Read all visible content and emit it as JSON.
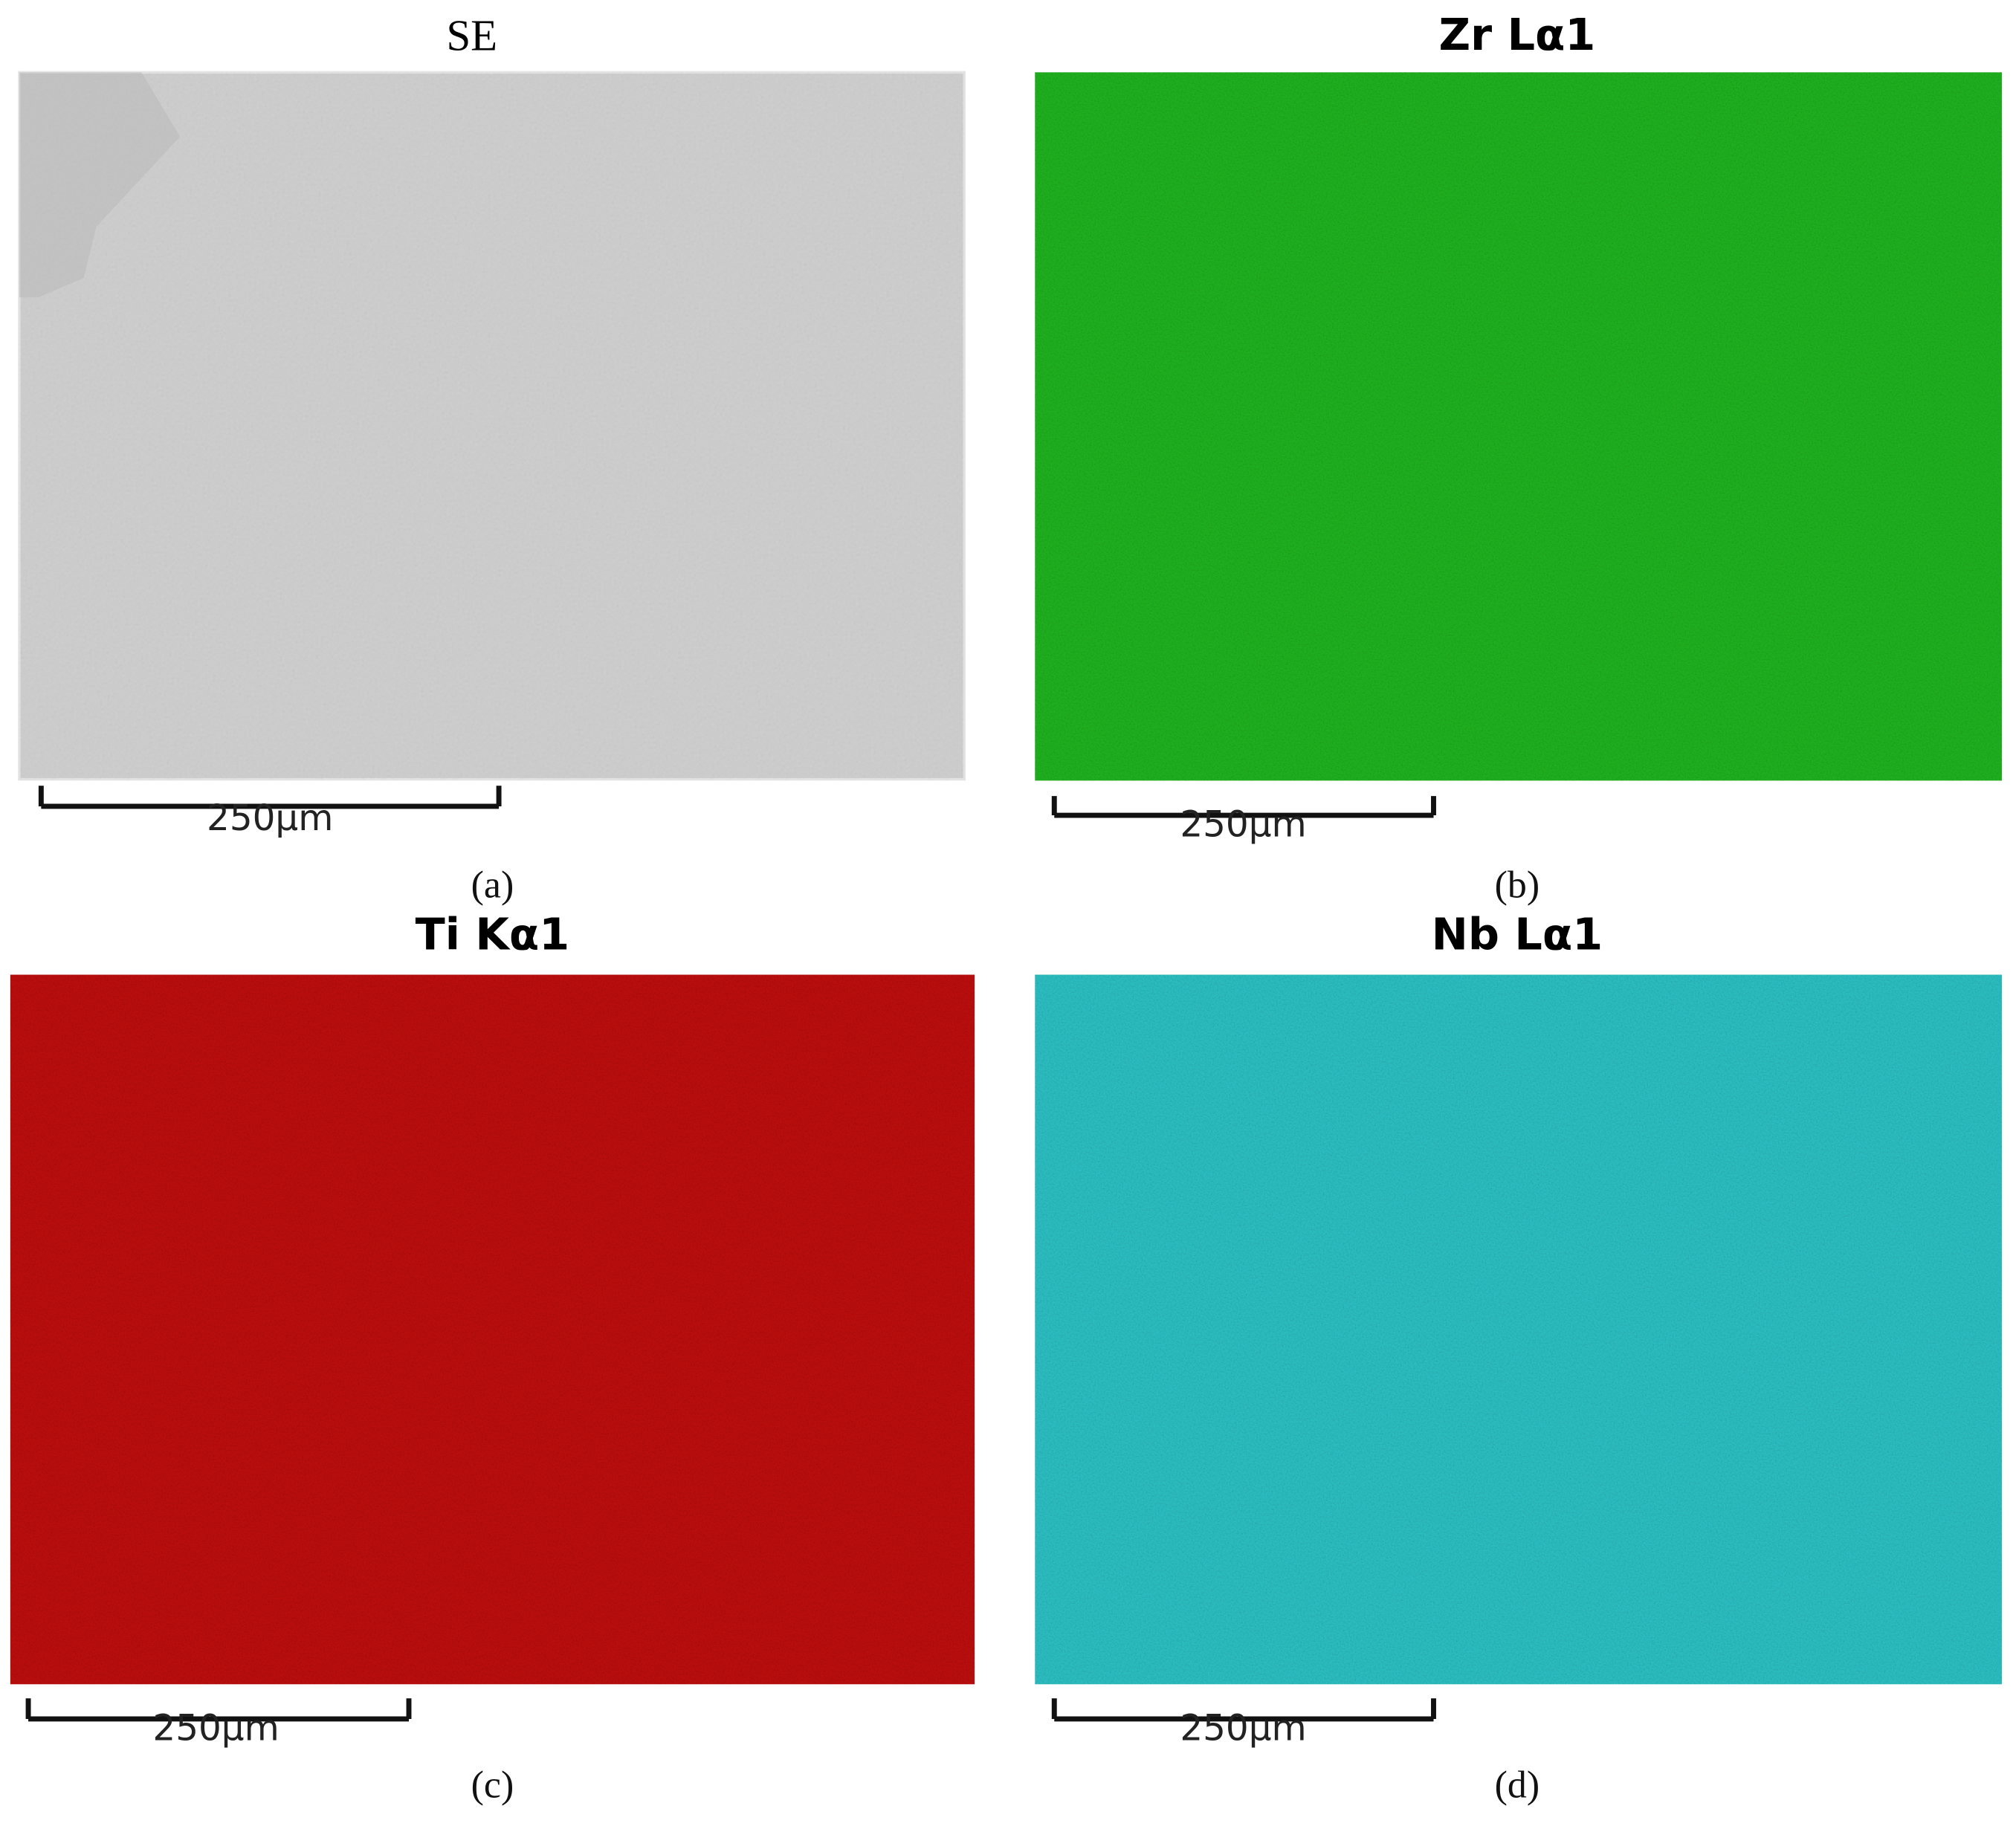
{
  "panels": [
    {
      "title": "SE",
      "scale_label": "250μm",
      "caption": "(a)"
    },
    {
      "title": "Zr Lα1",
      "scale_label": "250μm",
      "caption": "(b)"
    },
    {
      "title": "Ti Kα1",
      "scale_label": "250μm",
      "caption": "(c)"
    },
    {
      "title": "Nb Lα1",
      "scale_label": "250μm",
      "caption": "(d)"
    }
  ]
}
